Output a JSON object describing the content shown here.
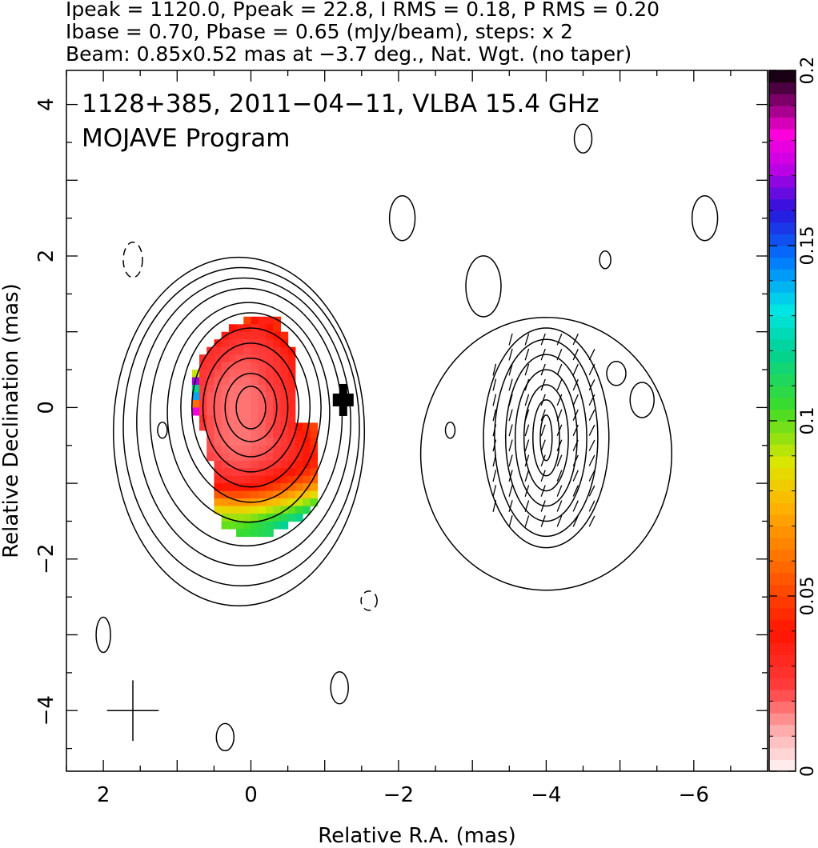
{
  "header": {
    "line1": "Ipeak = 1120.0, Ppeak = 22.8, I RMS = 0.18, P RMS = 0.20",
    "line2": "Ibase = 0.70, Pbase = 0.65 (mJy/beam), steps: x 2",
    "line3": "Beam: 0.85x0.52 mas at −3.7 deg., Nat. Wgt. (no taper)"
  },
  "plot_title": {
    "line1": "1128+385, 2011−04−11, VLBA 15.4 GHz",
    "line2": "MOJAVE Program"
  },
  "chart_data": {
    "type": "heatmap",
    "description_kind": "VLBA total intensity contours with fractional polarization color overlay",
    "xlabel": "Relative R.A. (mas)",
    "ylabel": "Relative Declination (mas)",
    "xlim": [
      2.5,
      -7.0
    ],
    "ylim": [
      -4.8,
      4.45
    ],
    "xticks": [
      2,
      0,
      -2,
      -4,
      -6
    ],
    "xtick_labels": [
      "2",
      "0",
      "−2",
      "−4",
      "−6"
    ],
    "yticks": [
      4,
      2,
      0,
      -2,
      -4
    ],
    "ytick_labels": [
      "4",
      "2",
      "0",
      "−2",
      "−4"
    ],
    "colorbar": {
      "range": [
        0,
        0.2
      ],
      "ticks": [
        0,
        0.05,
        0.1,
        0.15,
        0.2
      ],
      "tick_labels": [
        "0",
        "0.05",
        "0.1",
        "0.15",
        "0.2"
      ]
    },
    "intensity_core": {
      "x": 0.0,
      "y": 0.0,
      "contour_semi_axes_mas": [
        [
          1.7,
          2.3
        ],
        [
          1.6,
          2.1
        ],
        [
          1.45,
          1.9
        ],
        [
          1.3,
          1.7
        ],
        [
          1.1,
          1.45
        ],
        [
          0.95,
          1.25
        ],
        [
          0.8,
          1.05
        ],
        [
          0.65,
          0.85
        ],
        [
          0.5,
          0.65
        ],
        [
          0.35,
          0.45
        ],
        [
          0.2,
          0.28
        ]
      ]
    },
    "intensity_jet": {
      "x": -4.0,
      "y": -0.4,
      "contour_semi_axes_mas": [
        [
          1.7,
          1.8
        ],
        [
          0.85,
          1.45
        ],
        [
          0.7,
          1.3
        ],
        [
          0.55,
          1.1
        ],
        [
          0.42,
          0.9
        ],
        [
          0.3,
          0.7
        ],
        [
          0.18,
          0.5
        ],
        [
          0.08,
          0.3
        ]
      ]
    },
    "fractional_polarization_grid": {
      "x0": 0.85,
      "dx": -0.1,
      "y0": 1.15,
      "dy": -0.1,
      "rows": [
        {
          "y": 1.15,
          "x_from": 0.05,
          "x_to": -0.35,
          "values": [
            0.05,
            0.04,
            0.035,
            0.035,
            0.045
          ]
        },
        {
          "y": 1.05,
          "x_from": 0.25,
          "x_to": -0.35,
          "values": [
            0.04,
            0.035,
            0.035,
            0.03,
            0.035,
            0.04,
            0.045
          ]
        },
        {
          "y": 0.95,
          "x_from": 0.35,
          "x_to": -0.45,
          "values": [
            0.035,
            0.03,
            0.03,
            0.03,
            0.03,
            0.03,
            0.035,
            0.04,
            0.045
          ]
        },
        {
          "y": 0.85,
          "x_from": 0.45,
          "x_to": -0.45,
          "values": [
            0.035,
            0.03,
            0.028,
            0.026,
            0.025,
            0.026,
            0.028,
            0.03,
            0.035,
            0.04
          ]
        },
        {
          "y": 0.75,
          "x_from": 0.55,
          "x_to": -0.55,
          "values": [
            0.03,
            0.028,
            0.026,
            0.025,
            0.024,
            0.023,
            0.024,
            0.025,
            0.027,
            0.03,
            0.035,
            0.04
          ]
        },
        {
          "y": 0.65,
          "x_from": 0.65,
          "x_to": -0.55,
          "values": [
            0.03,
            0.028,
            0.026,
            0.024,
            0.023,
            0.022,
            0.022,
            0.023,
            0.024,
            0.026,
            0.028,
            0.032,
            0.036
          ]
        },
        {
          "y": 0.55,
          "x_from": 0.65,
          "x_to": -0.55,
          "values": [
            0.028,
            0.026,
            0.024,
            0.022,
            0.021,
            0.021,
            0.021,
            0.022,
            0.023,
            0.025,
            0.027,
            0.03,
            0.035
          ]
        },
        {
          "y": 0.45,
          "x_from": 0.75,
          "x_to": -0.55,
          "values": [
            0.09,
            0.026,
            0.024,
            0.022,
            0.021,
            0.02,
            0.02,
            0.02,
            0.021,
            0.023,
            0.025,
            0.028,
            0.03,
            0.035
          ]
        },
        {
          "y": 0.35,
          "x_from": 0.75,
          "x_to": -0.55,
          "values": [
            0.17,
            0.026,
            0.023,
            0.021,
            0.02,
            0.019,
            0.019,
            0.019,
            0.02,
            0.022,
            0.024,
            0.027,
            0.03,
            0.033
          ]
        },
        {
          "y": 0.25,
          "x_from": 0.75,
          "x_to": -0.55,
          "values": [
            0.12,
            0.025,
            0.022,
            0.02,
            0.019,
            0.018,
            0.018,
            0.018,
            0.019,
            0.021,
            0.023,
            0.026,
            0.029,
            0.032
          ]
        },
        {
          "y": 0.15,
          "x_from": 0.75,
          "x_to": -0.55,
          "values": [
            0.14,
            0.024,
            0.021,
            0.02,
            0.019,
            0.018,
            0.018,
            0.018,
            0.019,
            0.02,
            0.022,
            0.025,
            0.028,
            0.031
          ]
        },
        {
          "y": 0.05,
          "x_from": 0.75,
          "x_to": -0.55,
          "values": [
            0.06,
            0.024,
            0.021,
            0.02,
            0.019,
            0.018,
            0.018,
            0.018,
            0.019,
            0.02,
            0.022,
            0.025,
            0.028,
            0.032
          ]
        },
        {
          "y": -0.05,
          "x_from": 0.75,
          "x_to": -0.55,
          "values": [
            0.18,
            0.024,
            0.021,
            0.02,
            0.019,
            0.018,
            0.018,
            0.018,
            0.019,
            0.02,
            0.022,
            0.025,
            0.028,
            0.032
          ]
        },
        {
          "y": -0.15,
          "x_from": 0.65,
          "x_to": -0.55,
          "values": [
            0.03,
            0.022,
            0.02,
            0.019,
            0.018,
            0.018,
            0.018,
            0.019,
            0.02,
            0.022,
            0.024,
            0.027,
            0.03
          ]
        },
        {
          "y": -0.25,
          "x_from": 0.65,
          "x_to": -0.85,
          "values": [
            0.025,
            0.022,
            0.02,
            0.019,
            0.018,
            0.018,
            0.018,
            0.019,
            0.02,
            0.022,
            0.024,
            0.027,
            0.032,
            0.04,
            0.045,
            0.05
          ]
        },
        {
          "y": -0.35,
          "x_from": 0.55,
          "x_to": -0.85,
          "values": [
            0.022,
            0.02,
            0.019,
            0.018,
            0.018,
            0.018,
            0.019,
            0.02,
            0.022,
            0.024,
            0.027,
            0.03,
            0.036,
            0.042,
            0.048
          ]
        },
        {
          "y": -0.45,
          "x_from": 0.55,
          "x_to": -0.85,
          "values": [
            0.022,
            0.02,
            0.019,
            0.018,
            0.018,
            0.018,
            0.019,
            0.02,
            0.021,
            0.023,
            0.026,
            0.03,
            0.035,
            0.04,
            0.046
          ]
        },
        {
          "y": -0.55,
          "x_from": 0.55,
          "x_to": -0.85,
          "values": [
            0.022,
            0.021,
            0.02,
            0.019,
            0.019,
            0.019,
            0.02,
            0.021,
            0.022,
            0.024,
            0.027,
            0.03,
            0.034,
            0.038,
            0.044
          ]
        },
        {
          "y": -0.65,
          "x_from": 0.55,
          "x_to": -0.85,
          "values": [
            0.023,
            0.022,
            0.021,
            0.02,
            0.02,
            0.02,
            0.021,
            0.022,
            0.023,
            0.025,
            0.028,
            0.031,
            0.034,
            0.038,
            0.042
          ]
        },
        {
          "y": -0.75,
          "x_from": 0.45,
          "x_to": -0.85,
          "values": [
            0.024,
            0.023,
            0.022,
            0.022,
            0.022,
            0.023,
            0.024,
            0.026,
            0.028,
            0.031,
            0.034,
            0.037,
            0.04,
            0.044
          ]
        },
        {
          "y": -0.85,
          "x_from": 0.45,
          "x_to": -0.85,
          "values": [
            0.027,
            0.026,
            0.025,
            0.025,
            0.026,
            0.027,
            0.029,
            0.031,
            0.034,
            0.037,
            0.04,
            0.043,
            0.046,
            0.05
          ]
        },
        {
          "y": -0.95,
          "x_from": 0.45,
          "x_to": -0.85,
          "values": [
            0.032,
            0.031,
            0.03,
            0.03,
            0.031,
            0.033,
            0.035,
            0.038,
            0.041,
            0.044,
            0.047,
            0.05,
            0.054,
            0.058
          ]
        },
        {
          "y": -1.05,
          "x_from": 0.45,
          "x_to": -0.85,
          "values": [
            0.04,
            0.039,
            0.038,
            0.038,
            0.039,
            0.041,
            0.044,
            0.047,
            0.05,
            0.054,
            0.058,
            0.062,
            0.066,
            0.07
          ]
        },
        {
          "y": -1.15,
          "x_from": 0.45,
          "x_to": -0.85,
          "values": [
            0.055,
            0.054,
            0.053,
            0.053,
            0.054,
            0.056,
            0.058,
            0.061,
            0.064,
            0.068,
            0.072,
            0.076,
            0.08,
            0.085
          ]
        },
        {
          "y": -1.25,
          "x_from": 0.45,
          "x_to": -0.85,
          "values": [
            0.07,
            0.069,
            0.068,
            0.068,
            0.069,
            0.071,
            0.073,
            0.076,
            0.079,
            0.082,
            0.086,
            0.09,
            0.095,
            0.1
          ]
        },
        {
          "y": -1.35,
          "x_from": 0.45,
          "x_to": -0.75,
          "values": [
            0.085,
            0.084,
            0.083,
            0.083,
            0.084,
            0.086,
            0.088,
            0.091,
            0.094,
            0.097,
            0.1,
            0.105,
            0.11
          ]
        },
        {
          "y": -1.45,
          "x_from": 0.35,
          "x_to": -0.65,
          "values": [
            0.095,
            0.094,
            0.094,
            0.095,
            0.097,
            0.1,
            0.103,
            0.106,
            0.11,
            0.114,
            0.118
          ]
        },
        {
          "y": -1.55,
          "x_from": 0.35,
          "x_to": -0.45,
          "values": [
            0.1,
            0.1,
            0.101,
            0.103,
            0.106,
            0.109,
            0.112,
            0.116,
            0.12
          ]
        },
        {
          "y": -1.65,
          "x_from": 0.15,
          "x_to": -0.25,
          "values": [
            0.105,
            0.106,
            0.108,
            0.11,
            0.112
          ]
        }
      ]
    },
    "polarization_peak_marker": {
      "x": -1.25,
      "y": 0.1,
      "value": 0.0
    }
  }
}
